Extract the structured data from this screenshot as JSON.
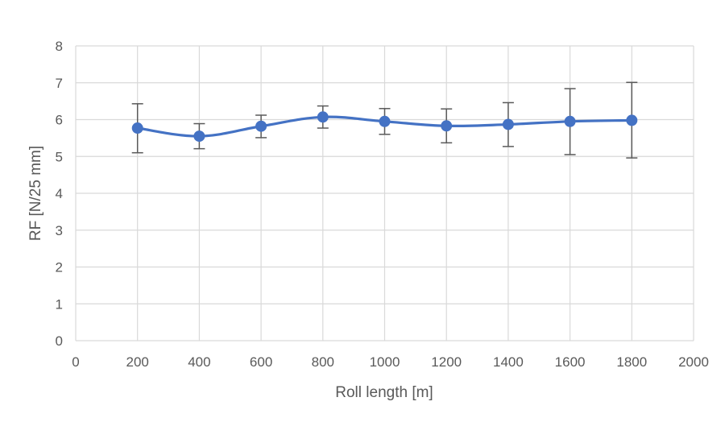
{
  "chart_data": {
    "type": "line",
    "title": "",
    "xlabel": "Roll length [m]",
    "ylabel": "RF [N/25 mm]",
    "xlim": [
      0,
      2000
    ],
    "ylim": [
      0,
      8
    ],
    "x_ticks": [
      "0",
      "200",
      "400",
      "600",
      "800",
      "1000",
      "1200",
      "1400",
      "1600",
      "1800",
      "2000"
    ],
    "y_ticks": [
      "0",
      "1",
      "2",
      "3",
      "4",
      "5",
      "6",
      "7",
      "8"
    ],
    "grid": true,
    "smooth": true,
    "series": [
      {
        "color": "#4472C4",
        "x": [
          200,
          400,
          600,
          800,
          1000,
          1200,
          1400,
          1600,
          1800
        ],
        "y": [
          5.77,
          5.55,
          5.82,
          6.07,
          5.95,
          5.83,
          5.87,
          5.95,
          5.98
        ],
        "error_low": [
          5.1,
          5.21,
          5.51,
          5.77,
          5.6,
          5.37,
          5.27,
          5.05,
          4.96
        ],
        "error_high": [
          6.43,
          5.89,
          6.12,
          6.37,
          6.3,
          6.29,
          6.46,
          6.84,
          7.01
        ]
      }
    ],
    "colors": {
      "grid": "#D9D9D9",
      "error_bar": "#595959",
      "text": "#595959"
    }
  }
}
